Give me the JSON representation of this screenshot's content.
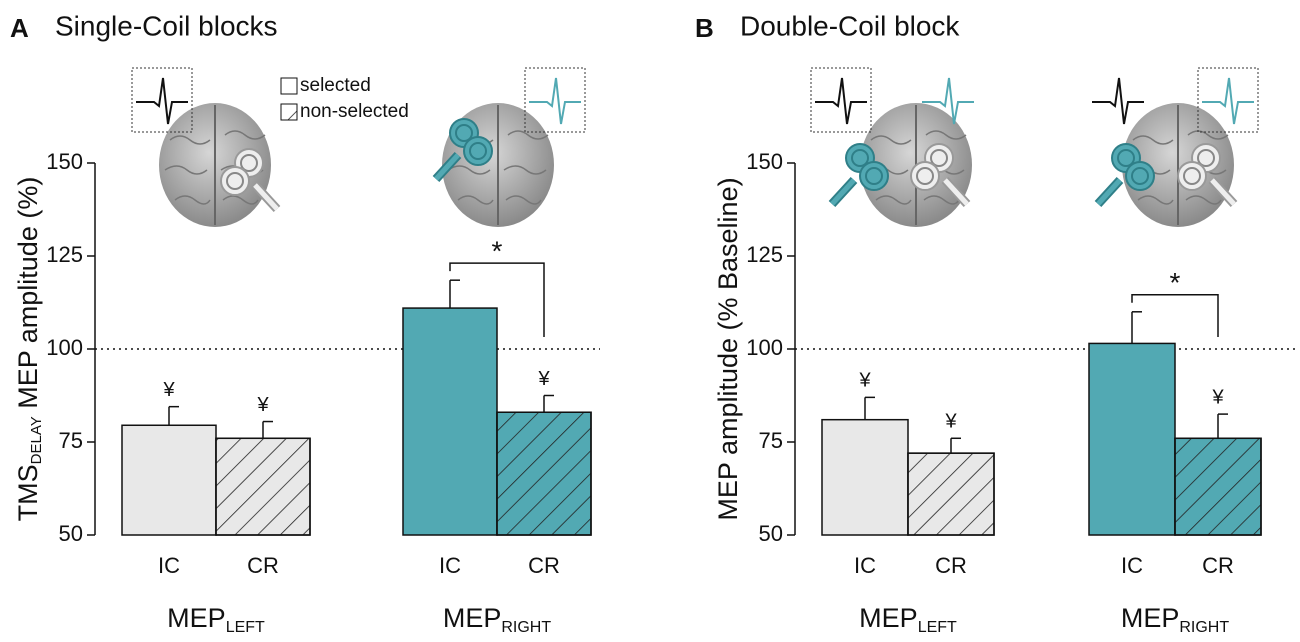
{
  "chart_data": [
    {
      "type": "bar",
      "panel": "A",
      "title": "Single-Coil blocks",
      "ylabel": {
        "main": "TMS",
        "sub": "DELAY",
        "rest": " MEP amplitude (%)"
      },
      "ylim": [
        50,
        150
      ],
      "yticks": [
        50,
        75,
        100,
        125,
        150
      ],
      "reference_line": 100,
      "categories": [
        "IC",
        "CR"
      ],
      "groups": [
        {
          "label": "MEP",
          "sub": "LEFT",
          "color": "#e8e8e8"
        },
        {
          "label": "MEP",
          "sub": "RIGHT",
          "color": "#52a9b3"
        }
      ],
      "series": [
        {
          "name": "selected",
          "hatch": false,
          "values": [
            79.5,
            111
          ],
          "errors": [
            5,
            7.5
          ],
          "markers": [
            "¥",
            null
          ]
        },
        {
          "name": "non-selected",
          "hatch": true,
          "values": [
            76,
            83
          ],
          "errors": [
            4.5,
            4.5
          ],
          "markers": [
            "¥",
            "¥"
          ]
        }
      ],
      "comparison": {
        "group": 1,
        "text": "*"
      }
    },
    {
      "type": "bar",
      "panel": "B",
      "title": "Double-Coil block",
      "ylabel": {
        "main": "MEP amplitude (% Baseline)"
      },
      "ylim": [
        50,
        150
      ],
      "yticks": [
        50,
        75,
        100,
        125,
        150
      ],
      "reference_line": 100,
      "categories": [
        "IC",
        "CR"
      ],
      "groups": [
        {
          "label": "MEP",
          "sub": "LEFT",
          "color": "#e8e8e8"
        },
        {
          "label": "MEP",
          "sub": "RIGHT",
          "color": "#52a9b3"
        }
      ],
      "series": [
        {
          "hatch": false,
          "values": [
            81,
            101.5
          ],
          "errors": [
            6,
            8.5
          ],
          "markers": [
            "¥",
            null
          ]
        },
        {
          "hatch": true,
          "values": [
            72,
            76
          ],
          "errors": [
            4,
            6.5
          ],
          "markers": [
            "¥",
            "¥"
          ]
        }
      ],
      "comparison": {
        "group": 1,
        "text": "*"
      }
    }
  ]
}
